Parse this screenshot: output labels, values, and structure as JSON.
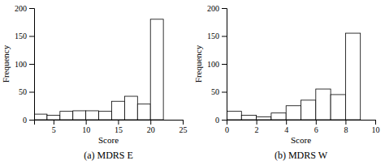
{
  "chart_data": [
    {
      "type": "histogram",
      "title": "(a) MDRS E",
      "x_label": "Score",
      "y_label": "Frequency",
      "bins": [
        2,
        4,
        6,
        8,
        10,
        12,
        14,
        16,
        18,
        20,
        22
      ],
      "values": [
        10,
        8,
        15,
        16,
        16,
        15,
        33,
        42,
        28,
        180
      ],
      "color": "#000000",
      "xlim": [
        2,
        25
      ],
      "xticks": [
        5,
        10,
        15,
        20,
        25
      ],
      "ylim": [
        0,
        200
      ],
      "yticks": [
        0,
        50,
        100,
        150,
        200
      ]
    },
    {
      "type": "histogram",
      "title": "(b) MDRS W",
      "x_label": "Score",
      "y_label": "Frequency",
      "bins": [
        0,
        1,
        2,
        3,
        4,
        5,
        6,
        7,
        8,
        9
      ],
      "values": [
        15,
        8,
        5,
        12,
        25,
        35,
        55,
        45,
        155
      ],
      "color": "#000000",
      "xlim": [
        0,
        10
      ],
      "xticks": [
        0,
        2,
        4,
        6,
        8,
        10
      ],
      "ylim": [
        0,
        200
      ],
      "yticks": [
        0,
        50,
        100,
        150,
        200
      ]
    }
  ]
}
